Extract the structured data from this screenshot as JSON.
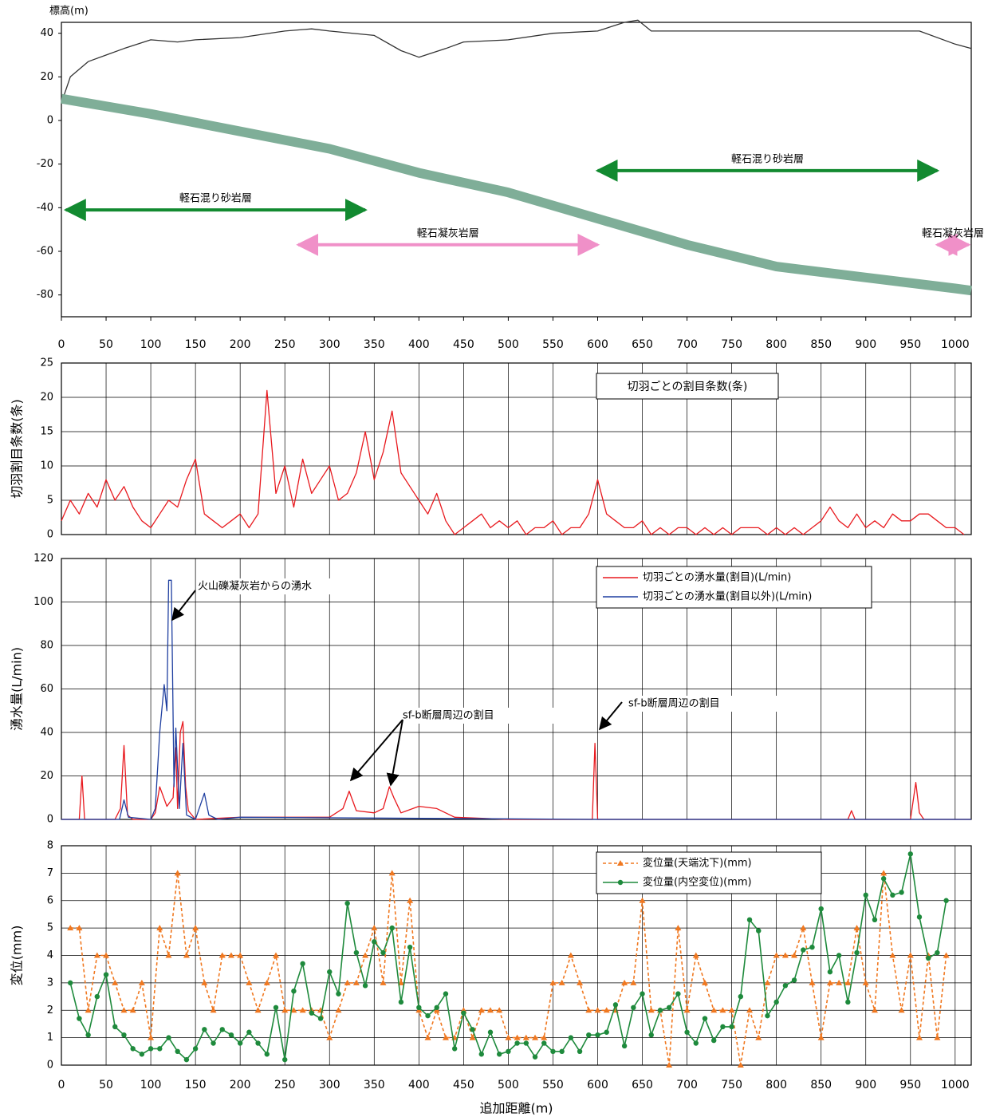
{
  "chart_data": [
    {
      "type": "line",
      "ylabel": "標高(m)",
      "xlim": [
        0,
        1018
      ],
      "ylim": [
        -90,
        45
      ],
      "xticks": [
        0,
        50,
        100,
        150,
        200,
        250,
        300,
        350,
        400,
        450,
        500,
        550,
        600,
        650,
        700,
        750,
        800,
        850,
        900,
        950,
        1000
      ],
      "yticks": [
        -80,
        -60,
        -40,
        -20,
        0,
        20,
        40
      ],
      "grid": false,
      "series": [
        {
          "color": "#333333",
          "x": [
            0,
            10,
            30,
            50,
            70,
            100,
            130,
            150,
            200,
            250,
            280,
            300,
            350,
            380,
            400,
            430,
            450,
            500,
            550,
            600,
            630,
            645,
            660,
            700,
            800,
            900,
            960,
            1000,
            1018
          ],
          "values": [
            8,
            20,
            27,
            30,
            33,
            37,
            36,
            37,
            38,
            41,
            42,
            41,
            39,
            32,
            29,
            33,
            36,
            37,
            40,
            41,
            45,
            46,
            41,
            41,
            41,
            41,
            41,
            35,
            33
          ]
        },
        {
          "color": "#7fae98",
          "x": [
            0,
            100,
            200,
            300,
            400,
            500,
            600,
            700,
            800,
            900,
            1000,
            1018
          ],
          "values": [
            10,
            3,
            -5,
            -13,
            -24,
            -33,
            -45,
            -57,
            -67,
            -72,
            -77,
            -78
          ]
        }
      ],
      "strata": [
        {
          "label": "軽石混り砂岩層",
          "from": 5,
          "to": 340,
          "elevation": -41,
          "color": "#128a30"
        },
        {
          "label": "軽石凝灰岩層",
          "from": 265,
          "to": 600,
          "elevation": -57,
          "color": "#f090c8"
        },
        {
          "label": "軽石混り砂岩層",
          "from": 600,
          "to": 980,
          "elevation": -23,
          "color": "#128a30"
        },
        {
          "label": "軽石凝灰岩層",
          "from": 980,
          "to": 1015,
          "elevation": -57,
          "color": "#f090c8"
        }
      ]
    },
    {
      "type": "line",
      "ylabel": "切羽割目条数(条)",
      "title": "切羽ごとの割目条数(条)",
      "xlim": [
        0,
        1018
      ],
      "ylim": [
        0,
        25
      ],
      "xticks": [
        0,
        50,
        100,
        150,
        200,
        250,
        300,
        350,
        400,
        450,
        500,
        550,
        600,
        650,
        700,
        750,
        800,
        850,
        900,
        950,
        1000
      ],
      "yticks": [
        0,
        5,
        10,
        15,
        20,
        25
      ],
      "grid": true,
      "series": [
        {
          "color": "#e8191e",
          "x": [
            0,
            10,
            20,
            30,
            40,
            50,
            60,
            70,
            80,
            90,
            100,
            110,
            120,
            130,
            140,
            150,
            160,
            170,
            180,
            190,
            200,
            210,
            220,
            230,
            240,
            250,
            260,
            270,
            280,
            290,
            300,
            310,
            320,
            330,
            340,
            350,
            360,
            370,
            380,
            390,
            400,
            410,
            420,
            430,
            440,
            450,
            460,
            470,
            480,
            490,
            500,
            510,
            520,
            530,
            540,
            550,
            560,
            570,
            580,
            590,
            600,
            610,
            620,
            630,
            640,
            650,
            660,
            670,
            680,
            690,
            700,
            710,
            720,
            730,
            740,
            750,
            760,
            770,
            780,
            790,
            800,
            810,
            820,
            830,
            840,
            850,
            860,
            870,
            880,
            890,
            900,
            910,
            920,
            930,
            940,
            950,
            960,
            970,
            980,
            990,
            1000,
            1010
          ],
          "values": [
            2,
            5,
            3,
            6,
            4,
            8,
            5,
            7,
            4,
            2,
            1,
            3,
            5,
            4,
            8,
            11,
            3,
            2,
            1,
            2,
            3,
            1,
            3,
            21,
            6,
            10,
            4,
            11,
            6,
            8,
            10,
            5,
            6,
            9,
            15,
            8,
            12,
            18,
            9,
            7,
            5,
            3,
            6,
            2,
            0,
            1,
            2,
            3,
            1,
            2,
            1,
            2,
            0,
            1,
            1,
            2,
            0,
            1,
            1,
            3,
            8,
            3,
            2,
            1,
            1,
            2,
            0,
            1,
            0,
            1,
            1,
            0,
            1,
            0,
            1,
            0,
            1,
            1,
            1,
            0,
            1,
            0,
            1,
            0,
            1,
            2,
            4,
            2,
            1,
            3,
            1,
            2,
            1,
            3,
            2,
            2,
            3,
            3,
            2,
            1,
            1,
            0
          ]
        }
      ]
    },
    {
      "type": "line",
      "ylabel": "湧水量(L/min)",
      "xlim": [
        0,
        1018
      ],
      "ylim": [
        0,
        120
      ],
      "xticks": [
        0,
        50,
        100,
        150,
        200,
        250,
        300,
        350,
        400,
        450,
        500,
        550,
        600,
        650,
        700,
        750,
        800,
        850,
        900,
        950,
        1000
      ],
      "yticks": [
        0,
        20,
        40,
        60,
        80,
        100,
        120
      ],
      "grid": true,
      "annotations": [
        "火山礫凝灰岩からの湧水",
        "sf-b断層周辺の割目",
        "sf-b断層周辺の割目"
      ],
      "series": [
        {
          "name": "切羽ごとの湧水量(割目)(L/min)",
          "color": "#e8191e",
          "x": [
            0,
            20,
            23,
            26,
            60,
            66,
            70,
            74,
            80,
            100,
            105,
            110,
            118,
            125,
            128,
            130,
            133,
            136,
            139,
            142,
            150,
            200,
            300,
            315,
            322,
            330,
            350,
            360,
            367,
            372,
            380,
            400,
            420,
            440,
            500,
            594,
            597,
            600,
            603,
            700,
            880,
            884,
            888,
            950,
            956,
            960,
            965,
            1018
          ],
          "values": [
            0,
            0,
            20,
            0,
            0,
            5,
            34,
            2,
            0,
            0,
            3,
            15,
            6,
            10,
            33,
            5,
            40,
            45,
            15,
            4,
            0,
            1,
            1,
            5,
            13,
            4,
            3,
            5,
            15,
            10,
            3,
            6,
            5,
            1,
            0,
            0,
            35,
            0,
            0,
            0,
            0,
            4,
            0,
            0,
            17,
            3,
            0,
            0
          ]
        },
        {
          "name": "切羽ごとの湧水量(割目以外)(L/min)",
          "color": "#1f3fa0",
          "x": [
            0,
            65,
            70,
            75,
            100,
            105,
            110,
            115,
            118,
            120,
            123,
            126,
            128,
            132,
            136,
            140,
            150,
            160,
            165,
            175,
            200,
            600,
            1018
          ],
          "values": [
            0,
            0,
            9,
            1,
            0,
            5,
            40,
            62,
            50,
            110,
            110,
            15,
            42,
            5,
            35,
            2,
            0,
            12,
            2,
            0,
            1,
            0,
            0
          ]
        }
      ]
    },
    {
      "type": "line",
      "ylabel": "変位(mm)",
      "xlabel": "追加距離(m)",
      "xlim": [
        0,
        1018
      ],
      "ylim": [
        0,
        8
      ],
      "xticks": [
        0,
        50,
        100,
        150,
        200,
        250,
        300,
        350,
        400,
        450,
        500,
        550,
        600,
        650,
        700,
        750,
        800,
        850,
        900,
        950,
        1000
      ],
      "yticks": [
        0,
        1,
        2,
        3,
        4,
        5,
        6,
        7,
        8
      ],
      "grid": true,
      "series": [
        {
          "name": "変位量(天端沈下)(mm)",
          "color": "#f07820",
          "dash": true,
          "marker": "triangle",
          "x": [
            10,
            20,
            30,
            40,
            50,
            60,
            70,
            80,
            90,
            100,
            110,
            120,
            130,
            140,
            150,
            160,
            170,
            180,
            190,
            200,
            210,
            220,
            230,
            240,
            250,
            260,
            270,
            280,
            290,
            300,
            310,
            320,
            330,
            340,
            350,
            360,
            370,
            380,
            390,
            400,
            410,
            420,
            430,
            440,
            450,
            460,
            470,
            480,
            490,
            500,
            510,
            520,
            530,
            540,
            550,
            560,
            570,
            580,
            590,
            600,
            610,
            620,
            630,
            640,
            650,
            660,
            670,
            680,
            690,
            700,
            710,
            720,
            730,
            740,
            750,
            760,
            770,
            780,
            790,
            800,
            810,
            820,
            830,
            840,
            850,
            860,
            870,
            880,
            890,
            900,
            910,
            920,
            930,
            940,
            950,
            960,
            970,
            980,
            990
          ],
          "values": [
            5,
            5,
            2,
            4,
            4,
            3,
            2,
            2,
            3,
            1,
            5,
            4,
            7,
            4,
            5,
            3,
            2,
            4,
            4,
            4,
            3,
            2,
            3,
            4,
            2,
            2,
            2,
            2,
            2,
            1,
            2,
            3,
            3,
            4,
            5,
            3,
            7,
            3,
            6,
            2,
            1,
            2,
            1,
            1,
            2,
            1,
            2,
            2,
            2,
            1,
            1,
            1,
            1,
            1,
            3,
            3,
            4,
            3,
            2,
            2,
            2,
            2,
            3,
            3,
            6,
            2,
            2,
            0,
            5,
            2,
            4,
            3,
            2,
            2,
            2,
            0,
            2,
            1,
            3,
            4,
            4,
            4,
            5,
            3,
            1,
            3,
            3,
            3,
            5,
            3,
            2,
            7,
            4,
            2,
            4,
            1,
            4,
            1,
            4
          ]
        },
        {
          "name": "変位量(内空変位)(mm)",
          "color": "#1e8a3c",
          "dash": false,
          "marker": "circle",
          "x": [
            10,
            20,
            30,
            40,
            50,
            60,
            70,
            80,
            90,
            100,
            110,
            120,
            130,
            140,
            150,
            160,
            170,
            180,
            190,
            200,
            210,
            220,
            230,
            240,
            250,
            260,
            270,
            280,
            290,
            300,
            310,
            320,
            330,
            340,
            350,
            360,
            370,
            380,
            390,
            400,
            410,
            420,
            430,
            440,
            450,
            460,
            470,
            480,
            490,
            500,
            510,
            520,
            530,
            540,
            550,
            560,
            570,
            580,
            590,
            600,
            610,
            620,
            630,
            640,
            650,
            660,
            670,
            680,
            690,
            700,
            710,
            720,
            730,
            740,
            750,
            760,
            770,
            780,
            790,
            800,
            810,
            820,
            830,
            840,
            850,
            860,
            870,
            880,
            890,
            900,
            910,
            920,
            930,
            940,
            950,
            960,
            970,
            980,
            990
          ],
          "values": [
            3,
            1.7,
            1.1,
            2.5,
            3.3,
            1.4,
            1.1,
            0.6,
            0.4,
            0.6,
            0.6,
            1,
            0.5,
            0.2,
            0.6,
            1.3,
            0.8,
            1.3,
            1.1,
            0.8,
            1.2,
            0.8,
            0.4,
            2.1,
            0.2,
            2.7,
            3.7,
            1.9,
            1.7,
            3.4,
            2.6,
            5.9,
            4.1,
            2.9,
            4.5,
            4.1,
            5,
            2.3,
            4.3,
            2.1,
            1.8,
            2.1,
            2.6,
            0.6,
            1.9,
            1.3,
            0.4,
            1.2,
            0.4,
            0.5,
            0.8,
            0.8,
            0.3,
            0.8,
            0.5,
            0.5,
            1,
            0.5,
            1.1,
            1.1,
            1.2,
            2.2,
            0.7,
            2.1,
            2.6,
            1.1,
            2,
            2.1,
            2.6,
            1.2,
            0.8,
            1.7,
            0.9,
            1.4,
            1.4,
            2.5,
            5.3,
            4.9,
            1.8,
            2.3,
            2.9,
            3.1,
            4.2,
            4.3,
            5.7,
            3.4,
            4,
            2.3,
            4.1,
            6.2,
            5.3,
            6.8,
            6.2,
            6.3,
            7.7,
            5.4,
            3.9,
            4.1,
            6
          ]
        }
      ]
    }
  ]
}
